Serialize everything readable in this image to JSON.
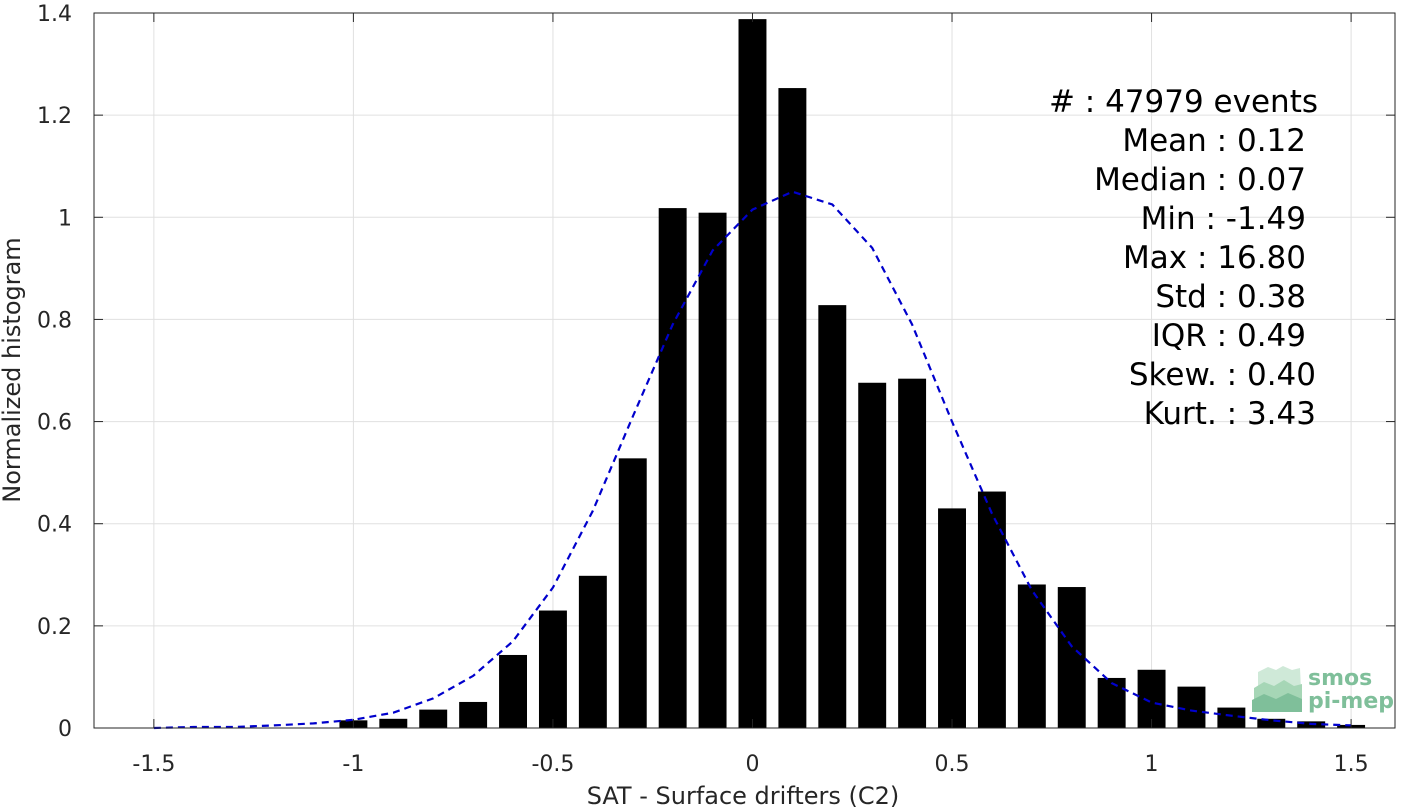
{
  "chart_data": {
    "type": "bar",
    "xlabel": "SAT - Surface drifters (C2)",
    "ylabel": "Normalized histogram",
    "xlim": [
      -1.65,
      1.61
    ],
    "ylim": [
      0,
      1.4
    ],
    "xticks": [
      -1.5,
      -1,
      -0.5,
      0,
      0.5,
      1,
      1.5
    ],
    "xtick_labels": [
      "-1.5",
      "-1",
      "-0.5",
      "0",
      "0.5",
      "1",
      "1.5"
    ],
    "yticks": [
      0,
      0.2,
      0.4,
      0.6,
      0.8,
      1,
      1.2,
      1.4
    ],
    "ytick_labels": [
      "0",
      "0.2",
      "0.4",
      "0.6",
      "0.8",
      "1",
      "1.2",
      "1.4"
    ],
    "grid": true,
    "bar_color": "#000000",
    "bar_width": 0.07,
    "bins": [
      {
        "x": -1.0,
        "y": 0.015
      },
      {
        "x": -0.9,
        "y": 0.018
      },
      {
        "x": -0.8,
        "y": 0.036
      },
      {
        "x": -0.7,
        "y": 0.051
      },
      {
        "x": -0.6,
        "y": 0.143
      },
      {
        "x": -0.5,
        "y": 0.23
      },
      {
        "x": -0.4,
        "y": 0.298
      },
      {
        "x": -0.3,
        "y": 0.528
      },
      {
        "x": -0.2,
        "y": 1.018
      },
      {
        "x": -0.1,
        "y": 1.009
      },
      {
        "x": 0.0,
        "y": 1.388
      },
      {
        "x": 0.1,
        "y": 1.253
      },
      {
        "x": 0.2,
        "y": 0.828
      },
      {
        "x": 0.3,
        "y": 0.676
      },
      {
        "x": 0.4,
        "y": 0.684
      },
      {
        "x": 0.5,
        "y": 0.43
      },
      {
        "x": 0.6,
        "y": 0.463
      },
      {
        "x": 0.7,
        "y": 0.281
      },
      {
        "x": 0.8,
        "y": 0.276
      },
      {
        "x": 0.9,
        "y": 0.098
      },
      {
        "x": 1.0,
        "y": 0.114
      },
      {
        "x": 1.1,
        "y": 0.081
      },
      {
        "x": 1.2,
        "y": 0.04
      },
      {
        "x": 1.3,
        "y": 0.018
      },
      {
        "x": 1.4,
        "y": 0.013
      },
      {
        "x": 1.5,
        "y": 0.006
      }
    ],
    "fit_curve": {
      "color": "#0000cc",
      "style": "dashed",
      "x": [
        -1.5,
        -1.4,
        -1.3,
        -1.2,
        -1.1,
        -1.0,
        -0.9,
        -0.8,
        -0.7,
        -0.6,
        -0.5,
        -0.4,
        -0.3,
        -0.2,
        -0.1,
        0.0,
        0.1,
        0.2,
        0.3,
        0.4,
        0.5,
        0.6,
        0.7,
        0.8,
        0.9,
        1.0,
        1.1,
        1.2,
        1.3,
        1.4,
        1.5
      ],
      "y": [
        0.0,
        0.002,
        0.002,
        0.005,
        0.009,
        0.016,
        0.03,
        0.058,
        0.102,
        0.17,
        0.275,
        0.425,
        0.61,
        0.79,
        0.935,
        1.015,
        1.05,
        1.025,
        0.94,
        0.79,
        0.6,
        0.42,
        0.27,
        0.16,
        0.088,
        0.05,
        0.034,
        0.024,
        0.015,
        0.008,
        0.005
      ]
    },
    "annotations": [
      {
        "label": "#",
        "sep": ":",
        "value": "47979 events"
      },
      {
        "label": "Mean",
        "sep": ":",
        "value": "0.12"
      },
      {
        "label": "Median",
        "sep": ":",
        "value": "0.07"
      },
      {
        "label": "Min",
        "sep": ":",
        "value": "-1.49"
      },
      {
        "label": "Max",
        "sep": ":",
        "value": "16.80"
      },
      {
        "label": "Std",
        "sep": ":",
        "value": "0.38"
      },
      {
        "label": "IQR",
        "sep": ":",
        "value": "0.49"
      },
      {
        "label": "Skew.",
        "sep": ":",
        "value": "0.40"
      },
      {
        "label": "Kurt.",
        "sep": ":",
        "value": "3.43"
      }
    ]
  },
  "logo": {
    "line1": "smos",
    "line2": "pi-mep",
    "color": "#7fbf9a"
  }
}
